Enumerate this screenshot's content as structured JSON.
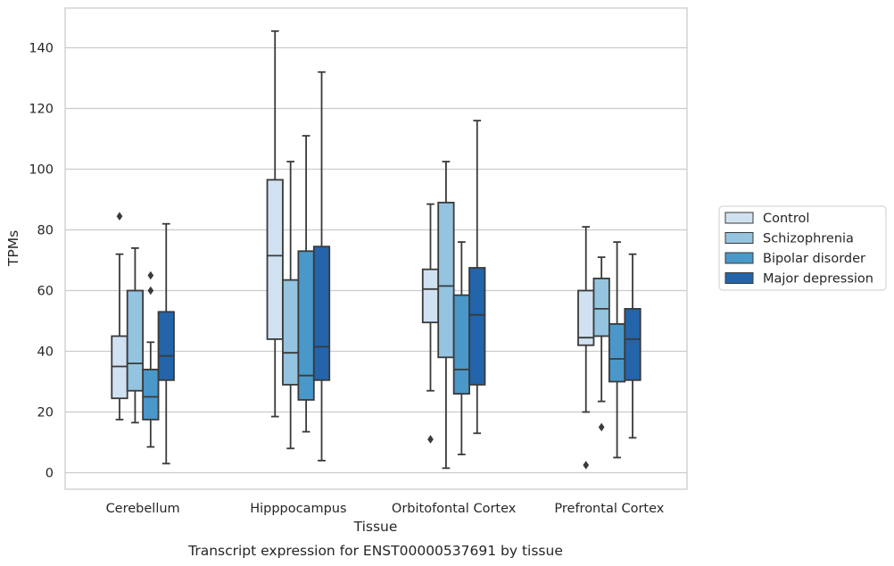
{
  "chart_data": {
    "type": "box",
    "title": "",
    "caption": "Transcript expression for ENST00000537691 by tissue",
    "xlabel": "Tissue",
    "ylabel": "TPMs",
    "ylim": [
      -5,
      152
    ],
    "yticks": [
      0,
      20,
      40,
      60,
      80,
      100,
      120,
      140
    ],
    "grid": "horizontal",
    "legend_position": "right",
    "categories": [
      "Cerebellum",
      "Hipppocampus",
      "Orbitofontal Cortex",
      "Prefrontal Cortex"
    ],
    "series": [
      {
        "name": "Control",
        "color": "#d0e1f2",
        "boxes": [
          {
            "whislo": 17.5,
            "q1": 24.5,
            "med": 35,
            "q3": 45,
            "whishi": 72,
            "fliers": [
              84.5
            ]
          },
          {
            "whislo": 18.5,
            "q1": 44,
            "med": 71.5,
            "q3": 96.5,
            "whishi": 145.5,
            "fliers": []
          },
          {
            "whislo": 27,
            "q1": 49.5,
            "med": 60.5,
            "q3": 67,
            "whishi": 88.5,
            "fliers": [
              11
            ]
          },
          {
            "whislo": 20,
            "q1": 42,
            "med": 44.5,
            "q3": 60,
            "whishi": 81,
            "fliers": [
              2.5
            ]
          }
        ]
      },
      {
        "name": "Schizophrenia",
        "color": "#94c4df",
        "boxes": [
          {
            "whislo": 16.5,
            "q1": 27,
            "med": 36,
            "q3": 60,
            "whishi": 74,
            "fliers": []
          },
          {
            "whislo": 8,
            "q1": 29,
            "med": 39.5,
            "q3": 63.5,
            "whishi": 102.5,
            "fliers": []
          },
          {
            "whislo": 1.5,
            "q1": 38,
            "med": 61.5,
            "q3": 89,
            "whishi": 102.5,
            "fliers": []
          },
          {
            "whislo": 23.5,
            "q1": 45,
            "med": 54,
            "q3": 64,
            "whishi": 71,
            "fliers": [
              15
            ]
          }
        ]
      },
      {
        "name": "Bipolar disorder",
        "color": "#4a98c9",
        "boxes": [
          {
            "whislo": 8.5,
            "q1": 17.5,
            "med": 25,
            "q3": 34,
            "whishi": 43,
            "fliers": [
              60,
              65
            ]
          },
          {
            "whislo": 13.5,
            "q1": 24,
            "med": 32,
            "q3": 73,
            "whishi": 111,
            "fliers": []
          },
          {
            "whislo": 6,
            "q1": 26,
            "med": 34,
            "q3": 58.5,
            "whishi": 76,
            "fliers": []
          },
          {
            "whislo": 5,
            "q1": 30,
            "med": 37.5,
            "q3": 49,
            "whishi": 76,
            "fliers": []
          }
        ]
      },
      {
        "name": "Major depression",
        "color": "#2364aa",
        "boxes": [
          {
            "whislo": 3,
            "q1": 30.5,
            "med": 38.5,
            "q3": 53,
            "whishi": 82,
            "fliers": []
          },
          {
            "whislo": 4,
            "q1": 30.5,
            "med": 41.5,
            "q3": 74.5,
            "whishi": 132,
            "fliers": []
          },
          {
            "whislo": 13,
            "q1": 29,
            "med": 52,
            "q3": 67.5,
            "whishi": 116,
            "fliers": []
          },
          {
            "whislo": 11.5,
            "q1": 30.5,
            "med": 44,
            "q3": 54,
            "whishi": 72,
            "fliers": []
          }
        ]
      }
    ]
  }
}
